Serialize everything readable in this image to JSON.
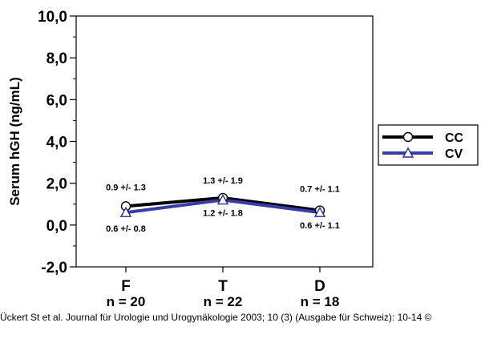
{
  "chart_data": {
    "type": "line",
    "ylabel": "Serum hGH (ng/mL)",
    "ylim": [
      -2.0,
      10.0
    ],
    "y_ticks": [
      "-2,0",
      "0,0",
      "2,0",
      "4,0",
      "6,0",
      "8,0",
      "10,0"
    ],
    "y_tick_values": [
      -2,
      0,
      2,
      4,
      6,
      8,
      10
    ],
    "categories": [
      "F",
      "T",
      "D"
    ],
    "category_n": [
      "n = 20",
      "n = 22",
      "n = 18"
    ],
    "grid": false,
    "legend_position": "right",
    "series": [
      {
        "name": "CC",
        "marker": "circle",
        "color": "#000000",
        "values": [
          0.9,
          1.3,
          0.7
        ],
        "labels": [
          "0.9 +/- 1.3",
          "1.3 +/- 1.9",
          "0.7 +/- 1.1"
        ]
      },
      {
        "name": "CV",
        "marker": "triangle",
        "color": "#3a3aa8",
        "values": [
          0.6,
          1.2,
          0.6
        ],
        "labels": [
          "0.6 +/- 0.8",
          "1.2 +/- 1.8",
          "0.6 +/- 1.1"
        ]
      }
    ]
  },
  "caption": "Ückert St et al. Journal für Urologie und Urogynäkologie 2003; 10 (3) (Ausgabe für Schweiz): 10-14 ©"
}
